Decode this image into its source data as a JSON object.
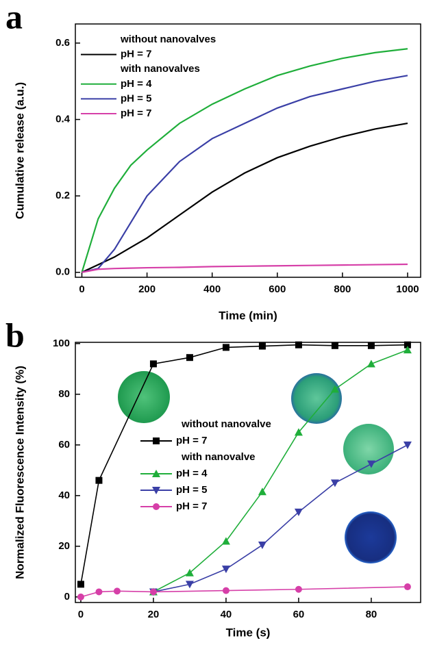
{
  "chart_data": [
    {
      "type": "line",
      "panel": "a",
      "x_label": "Time (min)",
      "y_label": "Cumulative release (a.u.)",
      "xlim": [
        -20,
        1040
      ],
      "ylim": [
        -0.013,
        0.65
      ],
      "xticks": [
        0,
        200,
        400,
        600,
        800,
        1000
      ],
      "yticks": [
        {
          "value": 0,
          "label": "0.0"
        },
        0.2,
        0.4,
        0.6
      ],
      "legend_headers": [
        "without nanovalves",
        "with nanovalves"
      ],
      "x": [
        0,
        50,
        100,
        150,
        200,
        300,
        400,
        500,
        600,
        700,
        800,
        900,
        1000
      ],
      "series": [
        {
          "name": "pH = 7",
          "color": "#000000",
          "values": [
            0,
            0.02,
            0.04,
            0.065,
            0.09,
            0.15,
            0.21,
            0.26,
            0.3,
            0.33,
            0.355,
            0.375,
            0.39
          ]
        },
        {
          "name": "pH = 4",
          "color": "#1fae3a",
          "values": [
            0,
            0.14,
            0.22,
            0.28,
            0.32,
            0.39,
            0.44,
            0.48,
            0.515,
            0.54,
            0.56,
            0.575,
            0.585
          ]
        },
        {
          "name": "pH = 5",
          "color": "#3a3fa6",
          "values": [
            0,
            0.01,
            0.06,
            0.13,
            0.2,
            0.29,
            0.35,
            0.39,
            0.43,
            0.46,
            0.48,
            0.5,
            0.515
          ]
        },
        {
          "name": "pH = 7",
          "color": "#d63fa8",
          "values": [
            0,
            0.008,
            0.01,
            0.011,
            0.012,
            0.013,
            0.015,
            0.016,
            0.017,
            0.018,
            0.019,
            0.02,
            0.021
          ]
        }
      ]
    },
    {
      "type": "line",
      "panel": "b",
      "x_label": "Time (s)",
      "y_label": "Normalized Fluorescence Intensity (%)",
      "xlim": [
        -1.5,
        93.6
      ],
      "ylim": [
        -2.2,
        100.5
      ],
      "xticks": [
        0,
        20,
        40,
        60,
        80
      ],
      "yticks": [
        0,
        20,
        40,
        60,
        80,
        100
      ],
      "legend_headers": [
        "without nanovalve",
        "with nanovalve"
      ],
      "series": [
        {
          "name": "pH = 7",
          "color": "#000000",
          "marker": "square",
          "x": [
            0,
            5,
            20,
            30,
            40,
            50,
            60,
            70,
            80,
            90
          ],
          "values": [
            5,
            46,
            92,
            94.5,
            98.5,
            99,
            99.5,
            99.2,
            99.2,
            99.5
          ]
        },
        {
          "name": "pH = 4",
          "color": "#1fae3a",
          "marker": "triangle-up",
          "x": [
            20,
            30,
            40,
            50,
            60,
            70,
            80,
            90
          ],
          "values": [
            2,
            9.5,
            22,
            41.5,
            65,
            82,
            92,
            97.5
          ]
        },
        {
          "name": "pH = 5",
          "color": "#3a3fa6",
          "marker": "triangle-down",
          "x": [
            20,
            30,
            40,
            50,
            60,
            70,
            80,
            90
          ],
          "values": [
            2,
            5,
            11,
            20.5,
            33.5,
            45,
            52.5,
            60
          ]
        },
        {
          "name": "pH = 7",
          "color": "#d63fa8",
          "marker": "circle",
          "x": [
            0,
            5,
            10,
            20,
            40,
            60,
            90
          ],
          "values": [
            0,
            2,
            2.3,
            2,
            2.5,
            3,
            4
          ]
        }
      ]
    }
  ]
}
